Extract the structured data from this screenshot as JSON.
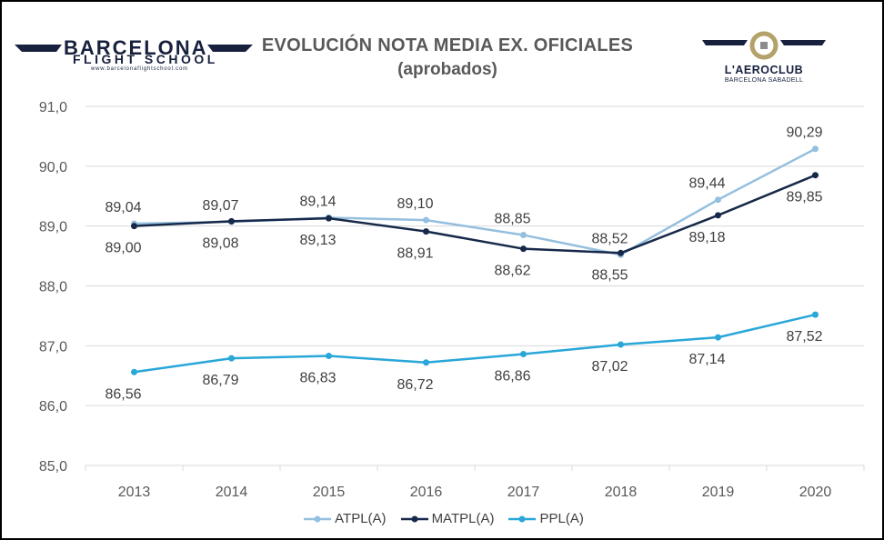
{
  "header": {
    "title": "EVOLUCIÓN NOTA MEDIA EX. OFICIALES",
    "subtitle": "(aprobados)",
    "logo_left": {
      "line1": "BARCELONA",
      "line2": "FLIGHT SCHOOL",
      "url": "www.barcelonaflightschool.com"
    },
    "logo_right": {
      "name": "L'AEROCLUB",
      "sub": "BARCELONA SABADELL"
    }
  },
  "colors": {
    "atpl": "#95bfde",
    "matpl": "#17294a",
    "ppl": "#29a7d8",
    "grid": "#d9d9d9",
    "text": "#595959",
    "brand_navy": "#17213e",
    "brand_gold": "#b3a26a"
  },
  "chart_data": {
    "type": "line",
    "title": "EVOLUCIÓN NOTA MEDIA EX. OFICIALES",
    "subtitle": "(aprobados)",
    "categories": [
      "2013",
      "2014",
      "2015",
      "2016",
      "2017",
      "2018",
      "2019",
      "2020"
    ],
    "ylim": [
      85,
      91
    ],
    "ytick_labels": [
      "85,0",
      "86,0",
      "87,0",
      "88,0",
      "89,0",
      "90,0",
      "91,0"
    ],
    "grid": true,
    "legend_position": "bottom",
    "series": [
      {
        "name": "ATPL(A)",
        "color": "#95bfde",
        "values": [
          89.04,
          89.07,
          89.14,
          89.1,
          88.85,
          88.52,
          89.44,
          90.29
        ],
        "labels": [
          "89,04",
          "89,07",
          "89,14",
          "89,10",
          "88,85",
          "88,52",
          "89,44",
          "90,29"
        ],
        "label_pos": [
          "above",
          "above",
          "above",
          "above",
          "above",
          "above",
          "above",
          "above"
        ]
      },
      {
        "name": "MATPL(A)",
        "color": "#17294a",
        "values": [
          89.0,
          89.08,
          89.13,
          88.91,
          88.62,
          88.55,
          89.18,
          89.85
        ],
        "labels": [
          "89,00",
          "89,08",
          "89,13",
          "88,91",
          "88,62",
          "88,55",
          "89,18",
          "89,85"
        ],
        "label_pos": [
          "below",
          "below",
          "below",
          "below",
          "below",
          "below",
          "below",
          "below"
        ]
      },
      {
        "name": "PPL(A)",
        "color": "#29a7d8",
        "values": [
          86.56,
          86.79,
          86.83,
          86.72,
          86.86,
          87.02,
          87.14,
          87.52
        ],
        "labels": [
          "86,56",
          "86,79",
          "86,83",
          "86,72",
          "86,86",
          "87,02",
          "87,14",
          "87,52"
        ],
        "label_pos": [
          "below",
          "below",
          "below",
          "below",
          "below",
          "below",
          "below",
          "below"
        ]
      }
    ]
  }
}
